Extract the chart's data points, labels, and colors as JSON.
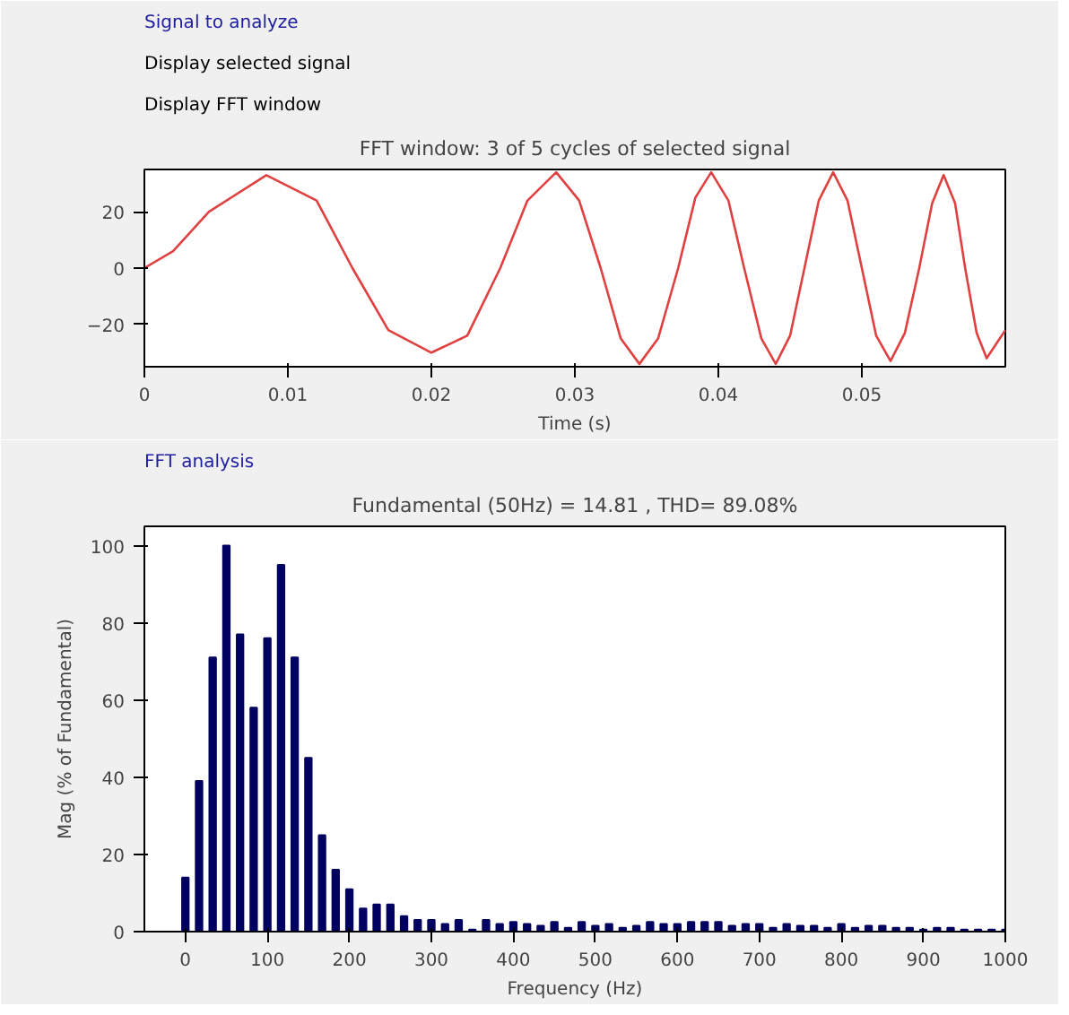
{
  "chart_data": [
    {
      "type": "line",
      "title": "FFT window: 3 of 5 cycles of selected signal",
      "xlabel": "Time (s)",
      "annotations": [
        "Signal to analyze",
        "Display selected signal",
        "Display FFT window"
      ],
      "x": [
        0,
        0.002,
        0.0045,
        0.0085,
        0.012,
        0.0145,
        0.017,
        0.02,
        0.0225,
        0.0248,
        0.0267,
        0.0287,
        0.0303,
        0.0318,
        0.0332,
        0.0345,
        0.0358,
        0.0372,
        0.0384,
        0.0395,
        0.0407,
        0.0418,
        0.043,
        0.044,
        0.045,
        0.046,
        0.047,
        0.048,
        0.049,
        0.05,
        0.051,
        0.052,
        0.053,
        0.054,
        0.0549,
        0.0557,
        0.0565,
        0.0572,
        0.058,
        0.0587,
        0.06
      ],
      "series": [
        {
          "color": "#e04040",
          "values": [
            0,
            6,
            20,
            33,
            24,
            0,
            -22,
            -30,
            -24,
            0,
            24,
            34,
            24,
            0,
            -25,
            -34,
            -25,
            0,
            25,
            34,
            24,
            0,
            -25,
            -34,
            -24,
            0,
            24,
            34,
            24,
            0,
            -24,
            -33,
            -23,
            0,
            23,
            33,
            23,
            0,
            -23,
            -32,
            -22
          ]
        }
      ],
      "xlim": [
        0,
        0.06
      ],
      "ylim": [
        -35,
        35
      ],
      "xticks": [
        0,
        0.01,
        0.02,
        0.03,
        0.04,
        0.05
      ],
      "yticks": [
        -20,
        0,
        20
      ],
      "grid": false,
      "line_style": "solid",
      "marker": "none"
    },
    {
      "type": "bar",
      "title": "Fundamental (50Hz) = 14.81 , THD= 89.08%",
      "xlabel": "Frequency (Hz)",
      "ylabel": "Mag (% of Fundamental)",
      "annotations": [
        "FFT analysis"
      ],
      "x": [
        0,
        16.7,
        33.3,
        50,
        66.7,
        83.3,
        100,
        116.7,
        133.3,
        150,
        166.7,
        183.3,
        200,
        216.7,
        233.3,
        250,
        266.7,
        283.3,
        300,
        316.7,
        333.3,
        350,
        366.7,
        383.3,
        400,
        416.7,
        433.3,
        450,
        466.7,
        483.3,
        500,
        516.7,
        533.3,
        550,
        566.7,
        583.3,
        600,
        616.7,
        633.3,
        650,
        666.7,
        683.3,
        700,
        716.7,
        733.3,
        750,
        766.7,
        783.3,
        800,
        816.7,
        833.3,
        850,
        866.7,
        883.3,
        900,
        916.7,
        933.3,
        950,
        966.7,
        983.3,
        1000
      ],
      "series": [
        {
          "color": "#000060",
          "values": [
            14,
            39,
            71,
            100,
            77,
            58,
            76,
            95,
            71,
            45,
            25,
            16,
            11,
            6,
            7,
            7,
            4,
            3,
            3,
            2,
            3,
            0.5,
            3,
            2,
            2.5,
            2,
            1.5,
            2.5,
            1,
            2.5,
            1.5,
            2,
            1,
            1.5,
            2.5,
            2,
            2,
            2.5,
            2.5,
            2.5,
            1.5,
            2,
            2,
            1,
            2,
            1.5,
            1.5,
            1,
            2,
            1,
            1.5,
            1.5,
            1,
            1,
            0.5,
            1,
            1,
            0.5,
            0.5,
            0.5,
            0.5
          ]
        }
      ],
      "xlim": [
        -50,
        1000
      ],
      "ylim": [
        0,
        105
      ],
      "xticks": [
        0,
        100,
        200,
        300,
        400,
        500,
        600,
        700,
        800,
        900,
        1000
      ],
      "yticks": [
        0,
        20,
        40,
        60,
        80,
        100
      ],
      "grid": false
    }
  ]
}
